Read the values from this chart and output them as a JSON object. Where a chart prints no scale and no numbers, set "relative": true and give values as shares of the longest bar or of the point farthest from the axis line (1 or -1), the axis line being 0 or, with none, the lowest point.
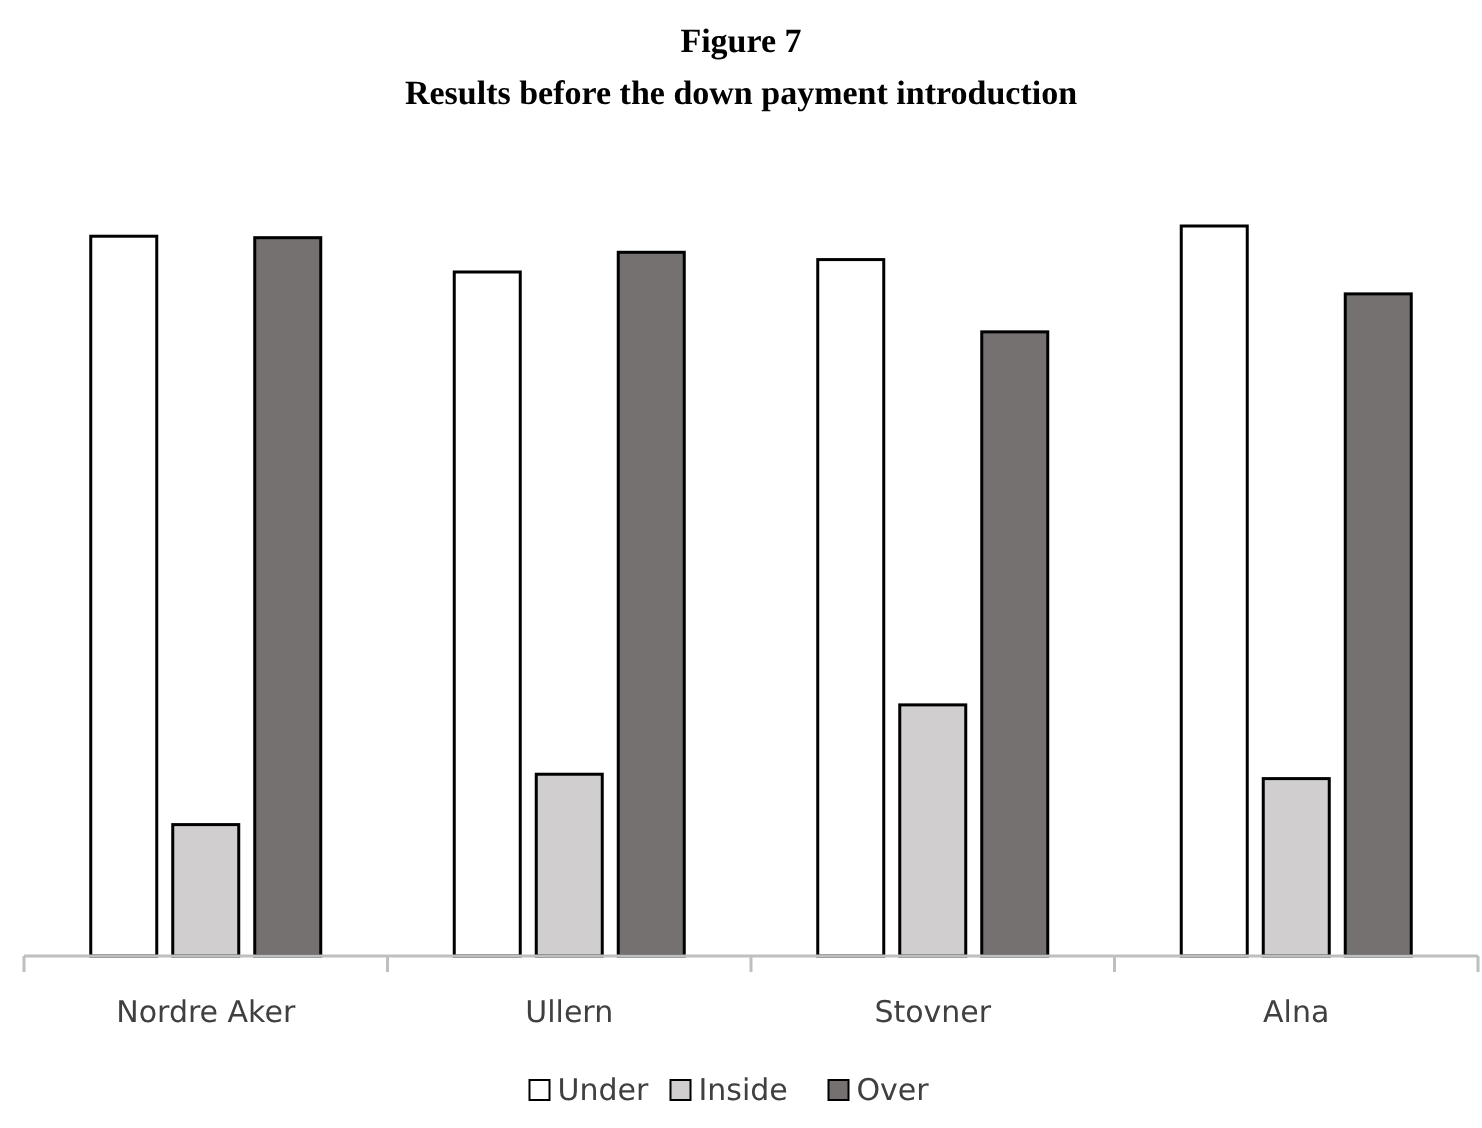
{
  "chart_data": {
    "type": "bar",
    "title": "Figure 7",
    "subtitle": "Results before the down payment introduction",
    "relative": true,
    "categories": [
      "Nordre Aker",
      "Ullern",
      "Stovner",
      "Alna"
    ],
    "series": [
      {
        "name": "Under",
        "color": "#ffffff",
        "values": [
          0.986,
          0.937,
          0.954,
          1
        ]
      },
      {
        "name": "Inside",
        "color": "#d0cece",
        "values": [
          0.18,
          0.249,
          0.344,
          0.243
        ]
      },
      {
        "name": "Over",
        "color": "#767171",
        "values": [
          0.984,
          0.964,
          0.855,
          0.907
        ]
      }
    ],
    "legend": "bottom"
  }
}
